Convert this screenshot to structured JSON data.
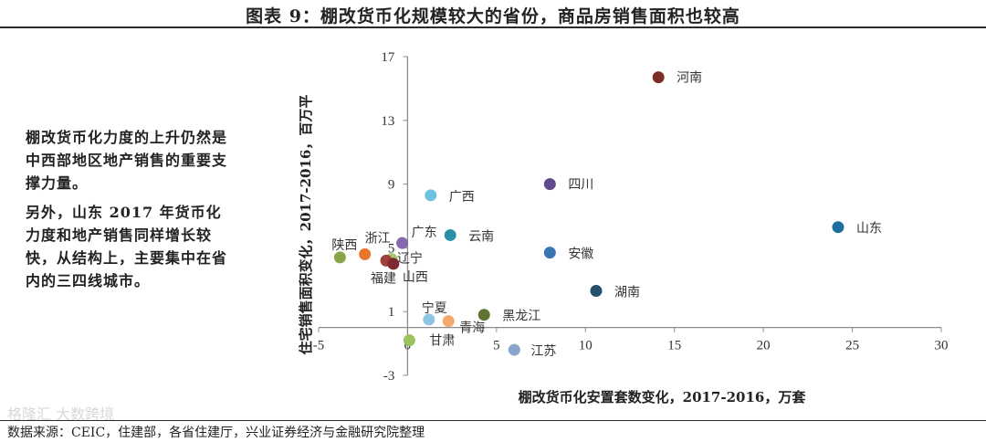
{
  "header": {
    "title": "图表 9：棚改货币化规模较大的省份，商品房销售面积也较高"
  },
  "side_text": {
    "para1": "棚改货币化力度的上升仍然是中西部地区地产销售的重要支撑力量。",
    "para2": "另外，山东 2017 年货币化力度和地产销售同样增长较快，从结构上，主要集中在省内的三四线城市。"
  },
  "footer": {
    "source": "数据来源：CEIC，住建部，各省住建厅，兴业证券经济与金融研究院整理",
    "watermark": "格隆汇 大数跨境"
  },
  "chart_data": {
    "type": "scatter",
    "title": "",
    "xlabel": "棚改货币化安置套数变化，2017-2016，万套",
    "ylabel": "住宅销售面积变化，2017-2016，百万平",
    "xlim": [
      -5,
      30
    ],
    "ylim": [
      -3,
      17
    ],
    "xticks": [
      -5,
      0,
      5,
      10,
      15,
      20,
      25,
      30
    ],
    "yticks": [
      -3,
      1,
      5,
      9,
      13,
      17
    ],
    "grid": false,
    "points": [
      {
        "name": "河南",
        "x": 14.1,
        "y": 15.7,
        "color": "#7b2d26"
      },
      {
        "name": "四川",
        "x": 8.0,
        "y": 9.0,
        "color": "#5e4a8c"
      },
      {
        "name": "广西",
        "x": 1.3,
        "y": 8.3,
        "color": "#6cc3e0"
      },
      {
        "name": "山东",
        "x": 24.2,
        "y": 6.3,
        "color": "#1f6e9e"
      },
      {
        "name": "云南",
        "x": 2.4,
        "y": 5.8,
        "color": "#2a8fa6"
      },
      {
        "name": "广东",
        "x": -0.3,
        "y": 5.3,
        "color": "#8468b0"
      },
      {
        "name": "安徽",
        "x": 8.0,
        "y": 4.7,
        "color": "#3a74b4"
      },
      {
        "name": "浙江",
        "x": -2.4,
        "y": 4.6,
        "color": "#e8762c"
      },
      {
        "name": "陕西",
        "x": -3.8,
        "y": 4.4,
        "color": "#8aa44a"
      },
      {
        "name": "辽宁",
        "x": -0.9,
        "y": 4.3,
        "color": "#a7c86a"
      },
      {
        "name": "福建",
        "x": -1.2,
        "y": 4.2,
        "color": "#a0403a"
      },
      {
        "name": "山西",
        "x": -0.8,
        "y": 4.0,
        "color": "#7f2a30"
      },
      {
        "name": "湖南",
        "x": 10.6,
        "y": 2.3,
        "color": "#24506b"
      },
      {
        "name": "黑龙江",
        "x": 4.3,
        "y": 0.8,
        "color": "#5f7332"
      },
      {
        "name": "宁夏",
        "x": 1.2,
        "y": 0.5,
        "color": "#8cc6e4"
      },
      {
        "name": "青海",
        "x": 2.3,
        "y": 0.4,
        "color": "#f4a96a"
      },
      {
        "name": "甘肃",
        "x": 0.1,
        "y": -0.8,
        "color": "#9cc35c"
      },
      {
        "name": "江苏",
        "x": 6.0,
        "y": -1.4,
        "color": "#8aa4cc"
      }
    ]
  }
}
